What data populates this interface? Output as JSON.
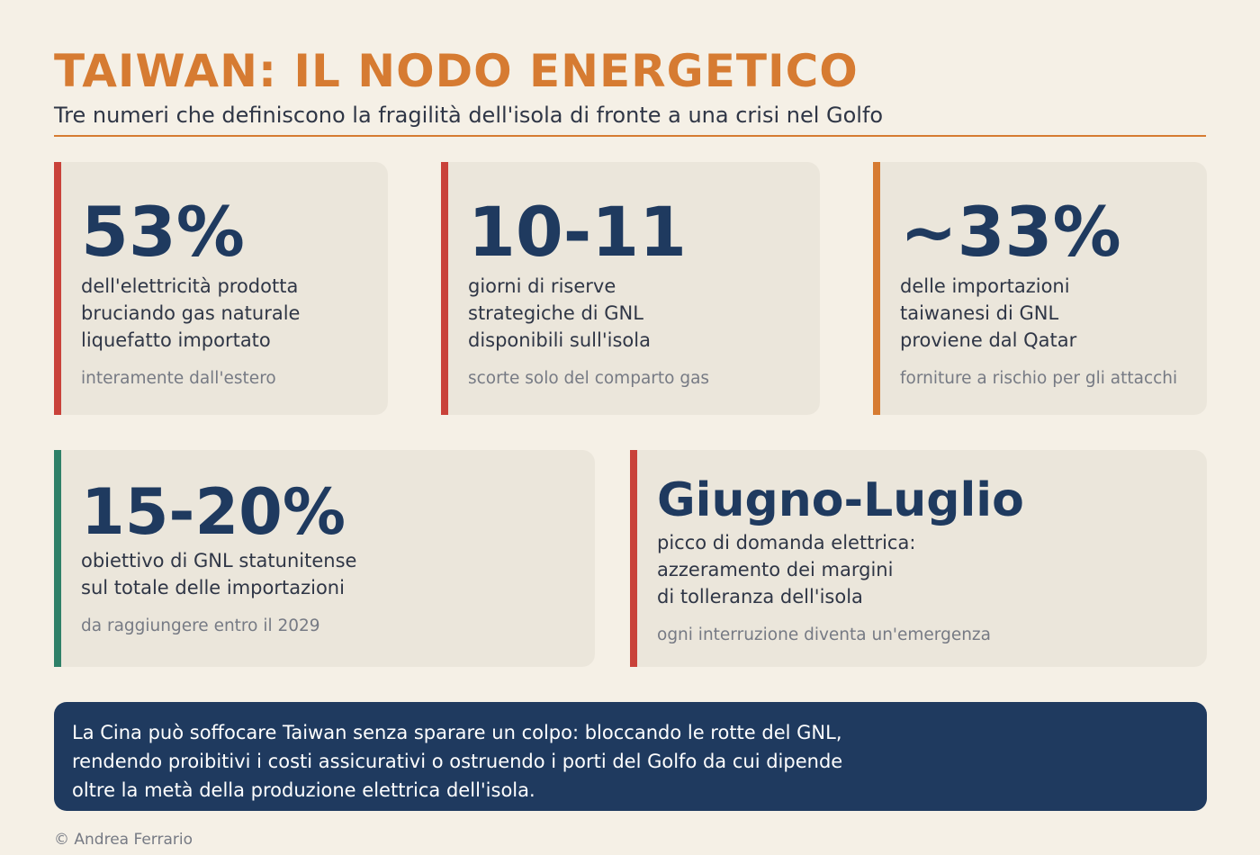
{
  "header": {
    "title": "TAIWAN: IL NODO ENERGETICO",
    "subtitle": "Tre numeri che definiscono la fragilità dell'isola di fronte a una crisi nel Golfo"
  },
  "colors": {
    "accent_orange": "#d67b32",
    "accent_red": "#c9423a",
    "accent_green": "#2e8068",
    "navy": "#1f3a5f",
    "background": "#f5f0e6",
    "card_background": "#ebe6db"
  },
  "cards": [
    {
      "value": "53%",
      "description": "dell'elettricità prodotta\nbruciando gas naturale\nliquefatto importato",
      "note": "interamente dall'estero"
    },
    {
      "value": "10-11",
      "description": "giorni di riserve\nstrategiche di GNL\ndisponibili sull'isola",
      "note": "scorte solo del comparto gas"
    },
    {
      "value": "~33%",
      "description": "delle importazioni\ntaiwanesi di GNL\nproviene dal Qatar",
      "note": "forniture a rischio per gli attacchi"
    },
    {
      "value": "15-20%",
      "description": "obiettivo di GNL statunitense\nsul totale delle importazioni",
      "note": "da raggiungere entro il 2029"
    },
    {
      "value": "Giugno-Luglio",
      "description": "picco di domanda elettrica:\nazzeramento dei margini\ndi tolleranza dell'isola",
      "note": "ogni interruzione diventa un'emergenza"
    }
  ],
  "banner": {
    "text": "La Cina può soffocare Taiwan senza sparare un colpo: bloccando le rotte del GNL,\nrendendo proibitivi i costi assicurativi o ostruendo i porti del Golfo da cui dipende\noltre la metà della produzione elettrica dell'isola."
  },
  "credit": "© Andrea Ferrario"
}
